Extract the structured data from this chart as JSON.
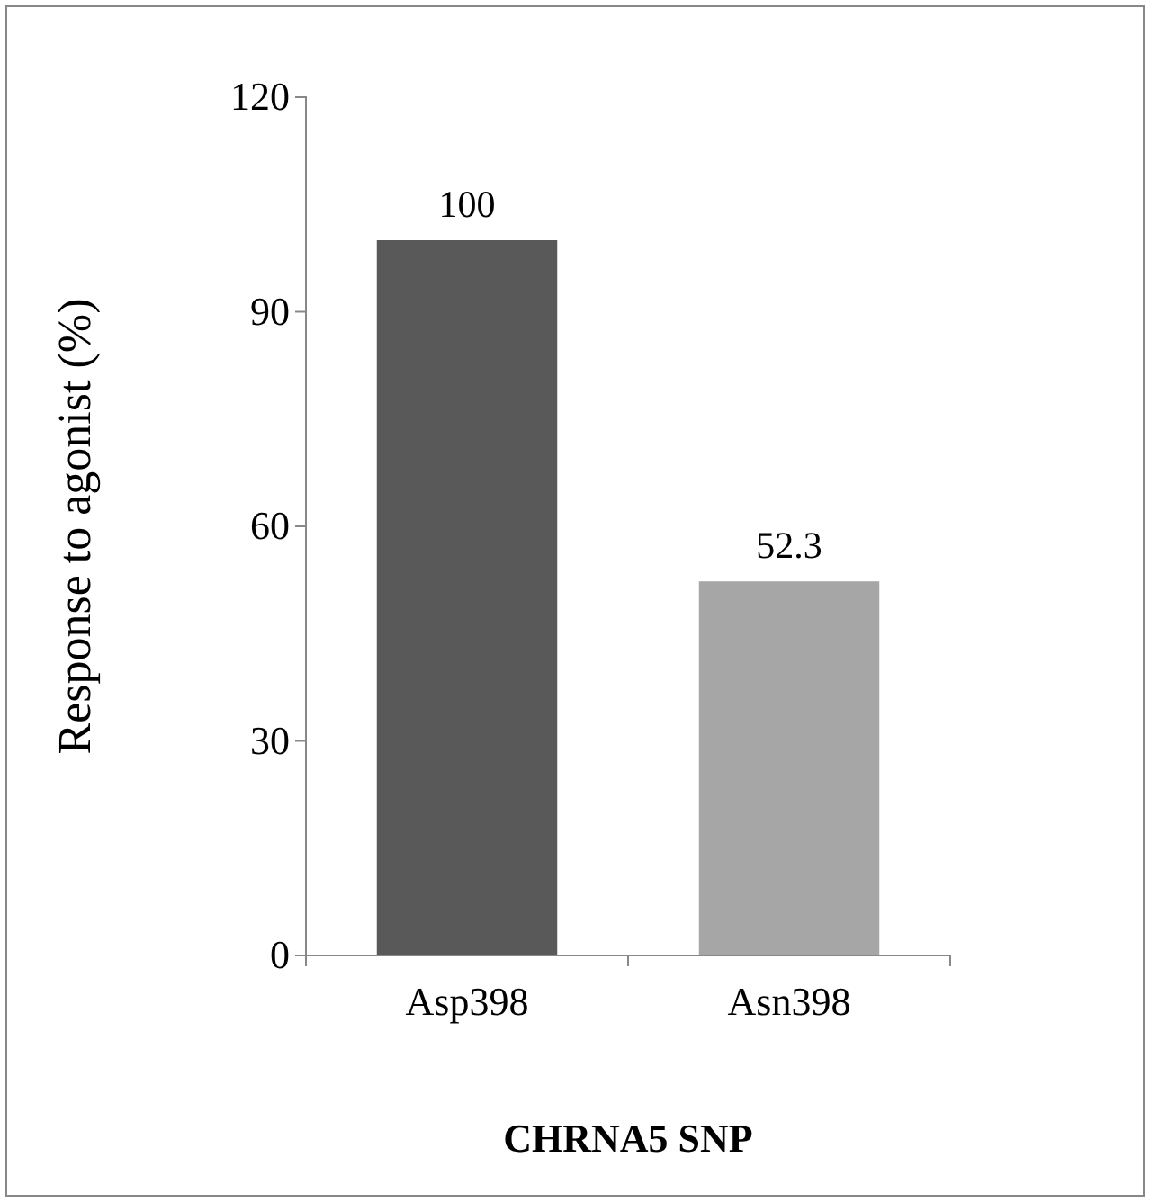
{
  "chart_data": {
    "type": "bar",
    "categories": [
      "Asp398",
      "Asn398"
    ],
    "values": [
      100,
      52.3
    ],
    "colors": [
      "#595959",
      "#a6a6a6"
    ],
    "ylim": [
      0,
      120
    ],
    "yticks": [
      0,
      30,
      60,
      90,
      120
    ],
    "ylabel": "Response to agonist (%)",
    "xlabel": "CHRNA5 SNP",
    "data_labels": true
  }
}
